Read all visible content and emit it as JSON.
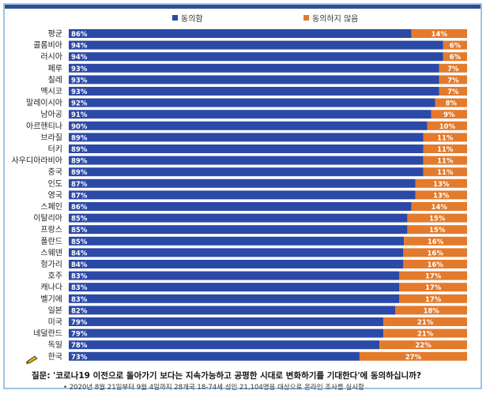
{
  "chart_data": {
    "type": "bar",
    "orientation": "horizontal",
    "stacked": true,
    "title": "",
    "xlabel": "",
    "ylabel": "",
    "xlim": [
      0,
      100
    ],
    "legend_position": "top-center",
    "categories": [
      "평균",
      "콜롬비아",
      "러시아",
      "페루",
      "칠레",
      "멕시코",
      "말레이시아",
      "남아공",
      "아르헨티나",
      "브라질",
      "터키",
      "사우디아라비아",
      "중국",
      "인도",
      "영국",
      "스페인",
      "이탈리아",
      "프랑스",
      "폴란드",
      "스웨덴",
      "헝가리",
      "호주",
      "캐나다",
      "벨기에",
      "일본",
      "미국",
      "네덜란드",
      "독일",
      "한국"
    ],
    "series": [
      {
        "name": "동의함",
        "color": "#2b49a6",
        "values": [
          86,
          94,
          94,
          93,
          93,
          93,
          92,
          91,
          90,
          89,
          89,
          89,
          89,
          87,
          87,
          86,
          85,
          85,
          85,
          84,
          84,
          83,
          83,
          83,
          82,
          79,
          79,
          78,
          73
        ]
      },
      {
        "name": "동의하지 않음",
        "color": "#e37a2c",
        "values": [
          14,
          6,
          6,
          7,
          7,
          7,
          8,
          9,
          10,
          11,
          11,
          11,
          11,
          13,
          13,
          14,
          15,
          15,
          16,
          16,
          16,
          17,
          17,
          17,
          18,
          21,
          21,
          22,
          27
        ]
      }
    ],
    "value_suffix": "%"
  },
  "question": "질문: '코로나19 이전으로 돌아가기 보다는 지속가능하고 공평한 시대로 변화하기를 기대한다'에 동의하십니까?",
  "footnote": "• 2020년 8월 21일부터 9월 4일까지 28개국 18-74세 성인 21,104명을 대상으로 온라인 조사를 실시함"
}
